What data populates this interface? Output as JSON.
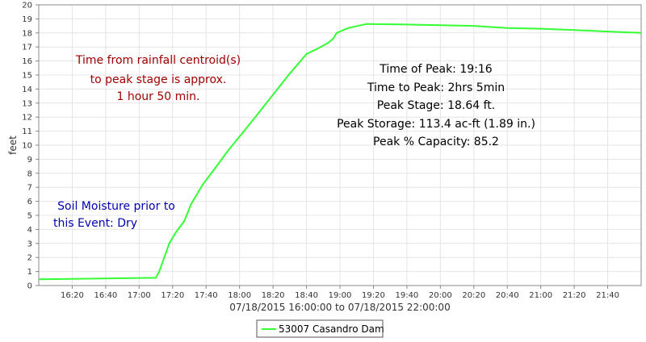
{
  "chart_data": {
    "type": "line",
    "xlabel": "07/18/2015 16:00:00 to 07/18/2015 22:00:00",
    "ylabel": "feet",
    "xlim": [
      "2015-07-18 16:00",
      "2015-07-18 22:00"
    ],
    "ylim": [
      0,
      20
    ],
    "grid": true,
    "legend_position": "bottom-center",
    "x_ticks": [
      "16:20",
      "16:40",
      "17:00",
      "17:20",
      "17:40",
      "18:00",
      "18:20",
      "18:40",
      "19:00",
      "19:20",
      "19:40",
      "20:00",
      "20:20",
      "20:40",
      "21:00",
      "21:20",
      "21:40"
    ],
    "y_ticks": [
      "0",
      "1",
      "2",
      "3",
      "4",
      "5",
      "6",
      "7",
      "8",
      "9",
      "10",
      "11",
      "12",
      "13",
      "14",
      "15",
      "16",
      "17",
      "18",
      "19",
      "20"
    ],
    "series": [
      {
        "name": "53007 Casandro Dam",
        "color": "#33ff33",
        "x": [
          "2015-07-18 16:00",
          "2015-07-18 17:10",
          "2015-07-18 17:12",
          "2015-07-18 17:15",
          "2015-07-18 17:18",
          "2015-07-18 17:22",
          "2015-07-18 17:27",
          "2015-07-18 17:31",
          "2015-07-18 17:38",
          "2015-07-18 17:45",
          "2015-07-18 17:53",
          "2015-07-18 18:02",
          "2015-07-18 18:10",
          "2015-07-18 18:20",
          "2015-07-18 18:30",
          "2015-07-18 18:40",
          "2015-07-18 18:47",
          "2015-07-18 18:53",
          "2015-07-18 18:56",
          "2015-07-18 18:58",
          "2015-07-18 19:05",
          "2015-07-18 19:16",
          "2015-07-18 19:40",
          "2015-07-18 20:00",
          "2015-07-18 20:20",
          "2015-07-18 20:40",
          "2015-07-18 21:00",
          "2015-07-18 21:20",
          "2015-07-18 21:40",
          "2015-07-18 22:00"
        ],
        "y": [
          0.45,
          0.55,
          1.0,
          2.0,
          3.0,
          3.8,
          4.6,
          5.8,
          7.2,
          8.3,
          9.6,
          10.9,
          12.1,
          13.6,
          15.1,
          16.5,
          16.9,
          17.3,
          17.6,
          18.0,
          18.35,
          18.64,
          18.6,
          18.55,
          18.5,
          18.35,
          18.3,
          18.2,
          18.1,
          18.0
        ]
      }
    ]
  },
  "annotations": {
    "rainfall_line1": "Time from rainfall centroid(s)",
    "rainfall_line2": "to peak stage is approx.",
    "rainfall_line3": "1 hour 50 min.",
    "peak_time": "Time of Peak: 19:16",
    "time_to_peak": "Time to Peak: 2hrs 5min",
    "peak_stage": "Peak Stage: 18.64 ft.",
    "peak_storage": "Peak Storage: 113.4 ac-ft (1.89 in.)",
    "peak_capacity": "Peak % Capacity: 85.2",
    "soil_line1": "Soil Moisture prior to",
    "soil_line2": "this Event: Dry"
  },
  "colors": {
    "line": "#33ff33",
    "rainfall_text": "#a00000",
    "peak_text": "#000000",
    "soil_text": "#0000b0",
    "grid": "#e4e4e4"
  }
}
